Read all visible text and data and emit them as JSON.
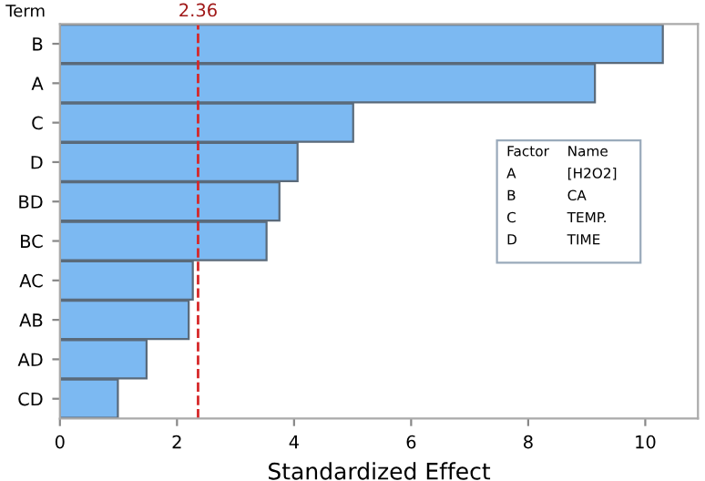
{
  "chart_data": {
    "type": "bar",
    "orientation": "horizontal",
    "xlabel": "Standardized Effect",
    "ylabel": "Term",
    "categories": [
      "B",
      "A",
      "C",
      "D",
      "BD",
      "BC",
      "AC",
      "AB",
      "AD",
      "CD"
    ],
    "values": [
      10.3,
      9.14,
      5.01,
      4.06,
      3.75,
      3.53,
      2.27,
      2.2,
      1.48,
      0.99
    ],
    "color": "#7cb9f2",
    "xlim": [
      0,
      10.9
    ],
    "xticks": [
      0,
      2,
      4,
      6,
      8,
      10
    ],
    "grid": false,
    "legend": false,
    "ref_lines": [
      {
        "axis": "x",
        "value": 2.36,
        "label": "2.36",
        "color": "#d62728",
        "line_style": "dashed"
      }
    ],
    "annotations": [
      "Factor",
      "Name",
      "A",
      "[H2O2]",
      "B",
      "CA",
      "C",
      "TEMP.",
      "D",
      "TIME"
    ]
  }
}
